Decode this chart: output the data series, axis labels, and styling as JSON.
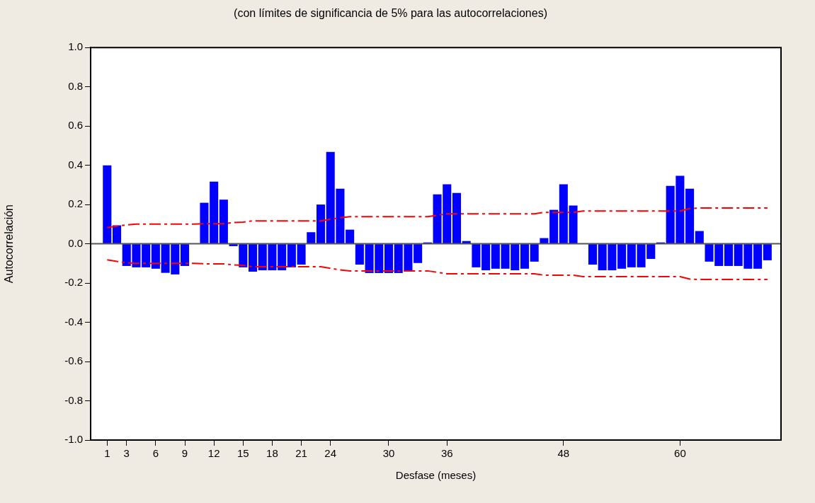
{
  "chart_data": {
    "type": "bar",
    "subtitle": "(con límites de significancia de 5% para las autocorrelaciones)",
    "xlabel": "Desfase (meses)",
    "ylabel": "Autocorrelación",
    "x": [
      1,
      2,
      3,
      4,
      5,
      6,
      7,
      8,
      9,
      10,
      11,
      12,
      13,
      14,
      15,
      16,
      17,
      18,
      19,
      20,
      21,
      22,
      23,
      24,
      25,
      26,
      27,
      28,
      29,
      30,
      31,
      32,
      33,
      34,
      35,
      36,
      37,
      38,
      39,
      40,
      41,
      42,
      43,
      44,
      45,
      46,
      47,
      48,
      49,
      50,
      51,
      52,
      53,
      54,
      55,
      56,
      57,
      58,
      59,
      60,
      61,
      62,
      63,
      64,
      65,
      66,
      67,
      68,
      69
    ],
    "xlim": [
      -0.7,
      70.4
    ],
    "xticks": [
      1,
      3,
      6,
      9,
      12,
      15,
      18,
      21,
      24,
      30,
      36,
      48,
      60
    ],
    "ylim": [
      -1,
      1
    ],
    "yticks": [
      {
        "value": -1,
        "label": "-1.0"
      },
      {
        "value": -0.8,
        "label": "-0.8"
      },
      {
        "value": -0.6,
        "label": "-0.6"
      },
      {
        "value": -0.4,
        "label": "-0.4"
      },
      {
        "value": -0.2,
        "label": "-0.2"
      },
      {
        "value": 0,
        "label": "0.0"
      },
      {
        "value": 0.2,
        "label": "0.2"
      },
      {
        "value": 0.4,
        "label": "0.4"
      },
      {
        "value": 0.6,
        "label": "0.6"
      },
      {
        "value": 0.8,
        "label": "0.8"
      },
      {
        "value": 1,
        "label": "1.0"
      }
    ],
    "grid": false,
    "legend": false,
    "marker": "none",
    "ref_lines": [
      {
        "axis": "y",
        "value": 0,
        "color": "#555555"
      }
    ],
    "series": [
      {
        "color": "#0000ff",
        "values": [
          0.4,
          0.094,
          -0.113,
          -0.12,
          -0.12,
          -0.127,
          -0.148,
          -0.156,
          -0.113,
          0,
          0.209,
          0.317,
          0.225,
          -0.012,
          -0.12,
          -0.142,
          -0.135,
          -0.135,
          -0.135,
          -0.12,
          -0.106,
          0.059,
          0.2,
          0.468,
          0.281,
          0.072,
          -0.106,
          -0.149,
          -0.149,
          -0.149,
          -0.149,
          -0.142,
          -0.098,
          0.007,
          0.252,
          0.303,
          0.259,
          0.014,
          -0.12,
          -0.135,
          -0.127,
          -0.127,
          -0.135,
          -0.127,
          -0.091,
          0.029,
          0.173,
          0.303,
          0.195,
          0,
          -0.106,
          -0.135,
          -0.135,
          -0.127,
          -0.12,
          -0.12,
          -0.077,
          0.007,
          0.295,
          0.346,
          0.281,
          0.065,
          -0.091,
          -0.113,
          -0.113,
          -0.113,
          -0.127,
          -0.127,
          -0.084
        ]
      },
      {
        "type": "line",
        "color": "#ff0000",
        "line_style": "dashed",
        "values": [
          0.082,
          0.09,
          0.096,
          0.1,
          0.1,
          0.1,
          0.1,
          0.1,
          0.1,
          0.1,
          0.102,
          0.102,
          0.102,
          0.108,
          0.11,
          0.117,
          0.117,
          0.117,
          0.117,
          0.117,
          0.117,
          0.117,
          0.117,
          0.125,
          0.133,
          0.138,
          0.138,
          0.138,
          0.138,
          0.138,
          0.138,
          0.138,
          0.138,
          0.138,
          0.145,
          0.153,
          0.153,
          0.153,
          0.153,
          0.153,
          0.153,
          0.153,
          0.153,
          0.153,
          0.153,
          0.16,
          0.16,
          0.16,
          0.16,
          0.167,
          0.167,
          0.167,
          0.167,
          0.167,
          0.167,
          0.167,
          0.167,
          0.167,
          0.167,
          0.167,
          0.18,
          0.182,
          0.182,
          0.182,
          0.182,
          0.182,
          0.182,
          0.182,
          0.182
        ]
      },
      {
        "type": "line",
        "color": "#ff0000",
        "line_style": "dashed",
        "values": [
          -0.082,
          -0.09,
          -0.096,
          -0.1,
          -0.1,
          -0.1,
          -0.1,
          -0.1,
          -0.1,
          -0.1,
          -0.102,
          -0.102,
          -0.102,
          -0.108,
          -0.11,
          -0.117,
          -0.117,
          -0.117,
          -0.117,
          -0.117,
          -0.117,
          -0.117,
          -0.117,
          -0.125,
          -0.133,
          -0.138,
          -0.138,
          -0.138,
          -0.138,
          -0.138,
          -0.138,
          -0.138,
          -0.138,
          -0.138,
          -0.145,
          -0.153,
          -0.153,
          -0.153,
          -0.153,
          -0.153,
          -0.153,
          -0.153,
          -0.153,
          -0.153,
          -0.153,
          -0.16,
          -0.16,
          -0.16,
          -0.16,
          -0.167,
          -0.167,
          -0.167,
          -0.167,
          -0.167,
          -0.167,
          -0.167,
          -0.167,
          -0.167,
          -0.167,
          -0.167,
          -0.18,
          -0.182,
          -0.182,
          -0.182,
          -0.182,
          -0.182,
          -0.182,
          -0.182,
          -0.182
        ]
      }
    ]
  }
}
